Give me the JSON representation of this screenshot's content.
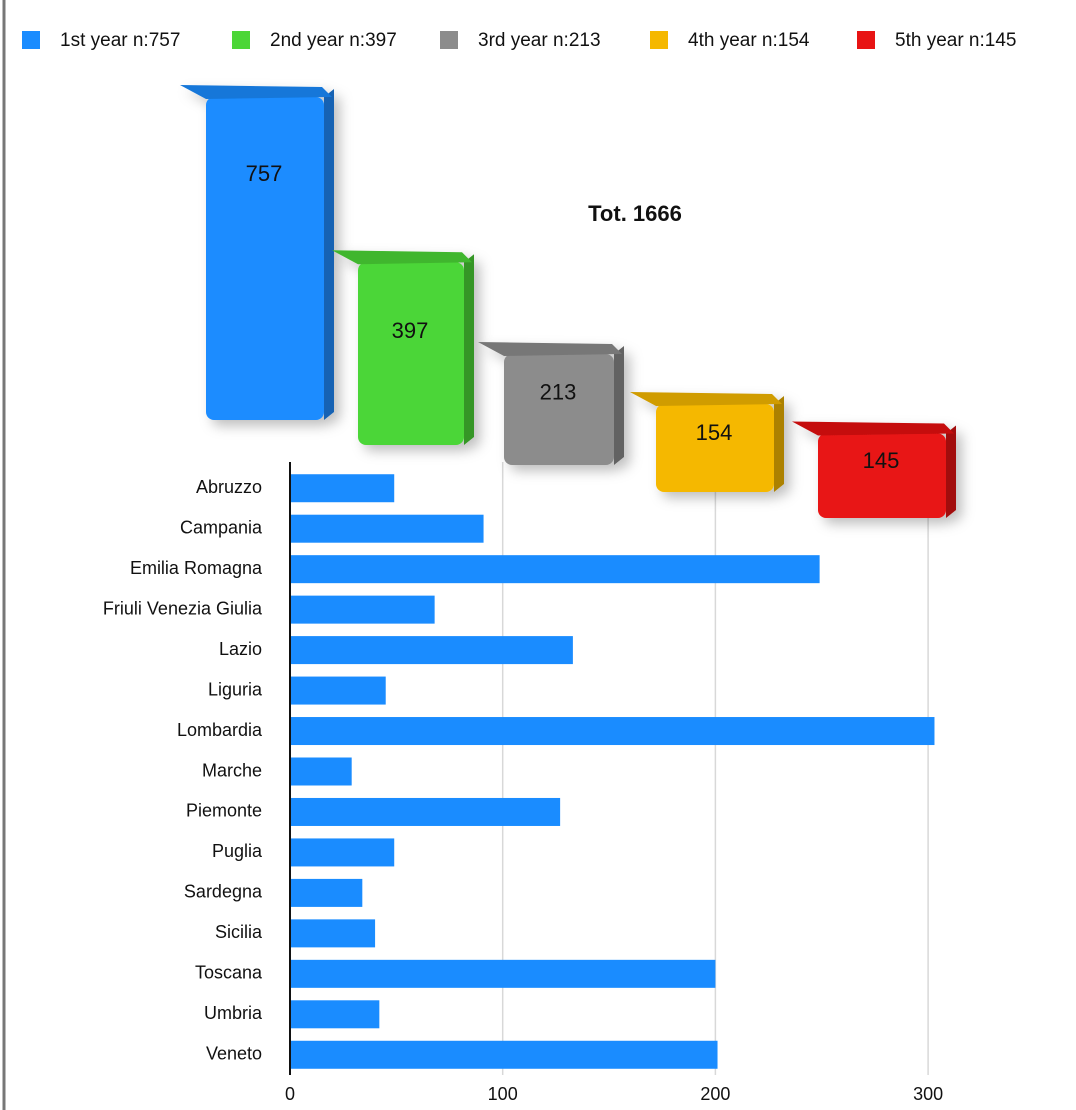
{
  "chart_data": [
    {
      "type": "bar3d",
      "title": "Tot. 1666",
      "series": [
        {
          "name": "1st year n:757",
          "color": "#1a8cff",
          "values": [
            757
          ]
        },
        {
          "name": "2nd year n:397",
          "color": "#4cd637",
          "values": [
            397
          ]
        },
        {
          "name": "3rd year n:213",
          "color": "#8c8c8c",
          "values": [
            213
          ]
        },
        {
          "name": "4th year n:154",
          "color": "#f5b800",
          "values": [
            154
          ]
        },
        {
          "name": "5th year n:145",
          "color": "#e81414",
          "values": [
            145
          ]
        }
      ],
      "legend": "top"
    },
    {
      "type": "hbar",
      "categories": [
        "Abruzzo",
        "Campania",
        "Emilia Romagna",
        "Friuli Venezia Giulia",
        "Lazio",
        "Liguria",
        "Lombardia",
        "Marche",
        "Piemonte",
        "Puglia",
        "Sardegna",
        "Sicilia",
        "Toscana",
        "Umbria",
        "Veneto"
      ],
      "values": [
        49,
        91,
        249,
        68,
        133,
        45,
        303,
        29,
        127,
        49,
        34,
        40,
        200,
        42,
        201
      ],
      "color": "#1a8cff",
      "xlim": [
        0,
        315
      ],
      "xticks": [
        0,
        100,
        200,
        300
      ],
      "grid": true
    }
  ]
}
